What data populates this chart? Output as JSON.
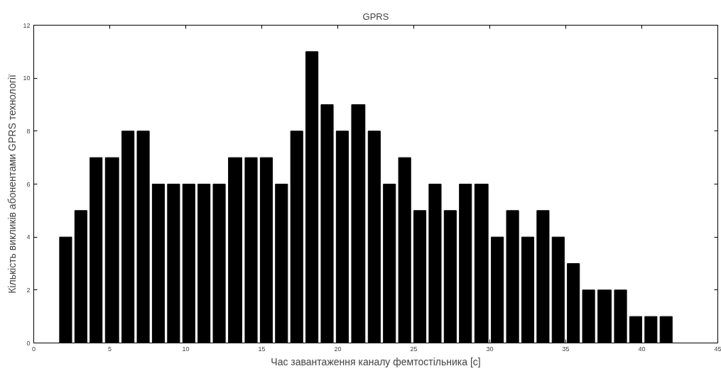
{
  "chart_data": {
    "type": "histogram",
    "title": "GPRS",
    "xlabel": "Час завантаження каналу фемтостільника [c]",
    "ylabel": "Кількість викликів абонентами GPRS технології",
    "bins": [
      1.6,
      2.6,
      3.6,
      4.6,
      5.7,
      6.7,
      7.7,
      8.7,
      9.7,
      10.7,
      11.7,
      12.7,
      13.8,
      14.8,
      15.8,
      16.8,
      17.8,
      18.8,
      19.8,
      20.8,
      21.9,
      22.9,
      23.9,
      24.9,
      25.9,
      26.9,
      27.9,
      28.9,
      30.0,
      31.0,
      32.0,
      33.0,
      34.0,
      35.0,
      36.0,
      37.0,
      38.1,
      39.1,
      40.1,
      41.1,
      42.1
    ],
    "values": [
      4,
      5,
      7,
      7,
      8,
      8,
      6,
      6,
      6,
      6,
      6,
      7,
      7,
      7,
      6,
      8,
      11,
      9,
      8,
      9,
      8,
      6,
      7,
      5,
      6,
      5,
      6,
      6,
      4,
      5,
      4,
      5,
      4,
      3,
      2,
      2,
      2,
      1,
      1,
      1
    ],
    "color": "#000000",
    "xlim": [
      0,
      45
    ],
    "xticks": [
      0,
      5,
      10,
      15,
      20,
      25,
      30,
      35,
      40,
      45
    ],
    "ylim": [
      0,
      12
    ],
    "yticks": [
      0,
      2,
      4,
      6,
      8,
      10,
      12
    ],
    "grid": false
  }
}
